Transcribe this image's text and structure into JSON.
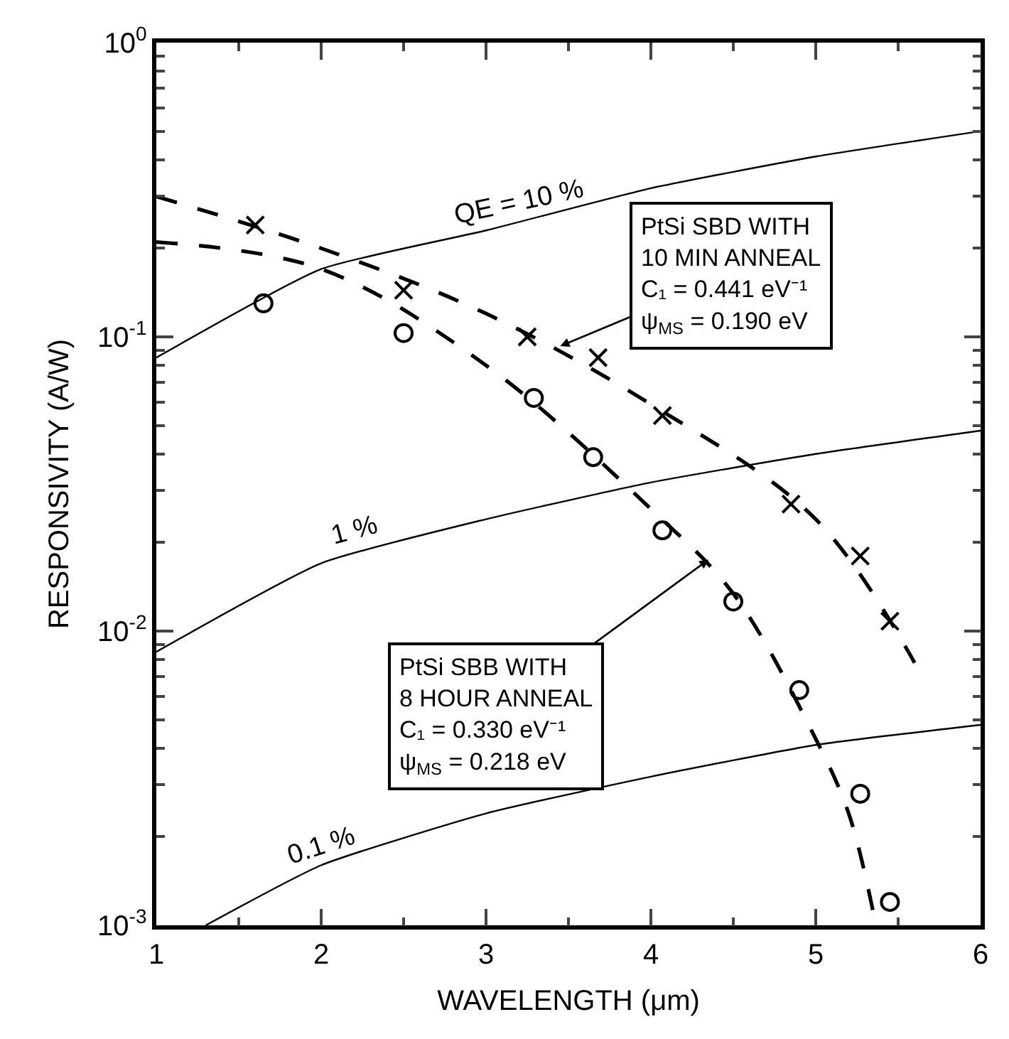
{
  "chart_data": {
    "type": "line",
    "xlabel": "WAVELENGTH (μm)",
    "ylabel": "RESPONSIVITY (A/W)",
    "xlim": [
      1,
      6
    ],
    "xticks": [
      1,
      2,
      3,
      4,
      5,
      6
    ],
    "ylim": [
      0.001,
      1
    ],
    "yticks": [
      {
        "value": 0.001,
        "label": "10$^{-3}$"
      },
      {
        "value": 0.01,
        "label": "10$^{-2}$"
      },
      {
        "value": 0.1,
        "label": "10$^{-1}$"
      },
      {
        "value": 1,
        "label": "10$^{0}$"
      }
    ],
    "log": "y",
    "series": [
      {
        "color": "#000000",
        "line_style": "solid",
        "marker": "none",
        "x": [
          1,
          2,
          3,
          4,
          5,
          6
        ],
        "values": [
          0.085,
          0.17,
          0.23,
          0.32,
          0.41,
          0.5
        ]
      },
      {
        "color": "#000000",
        "line_style": "solid",
        "marker": "none",
        "x": [
          1,
          2,
          3,
          4,
          5,
          6
        ],
        "values": [
          0.0085,
          0.017,
          0.024,
          0.032,
          0.04,
          0.048
        ]
      },
      {
        "color": "#000000",
        "line_style": "solid",
        "marker": "none",
        "x": [
          1.3,
          2,
          3,
          4,
          5,
          6
        ],
        "values": [
          0.001,
          0.0016,
          0.0024,
          0.0032,
          0.0041,
          0.0048
        ]
      },
      {
        "color": "#000000",
        "line_style": "dashed",
        "marker": "none",
        "x": [
          1,
          2,
          3,
          4,
          4.5,
          5,
          5.2,
          5.35
        ],
        "values": [
          0.21,
          0.17,
          0.08,
          0.026,
          0.0134,
          0.0043,
          0.0024,
          0.0011
        ]
      },
      {
        "color": "#000000",
        "line_style": "dashed",
        "marker": "none",
        "x": [
          1,
          2,
          3,
          4,
          5,
          5.6
        ],
        "values": [
          0.3,
          0.2,
          0.12,
          0.059,
          0.024,
          0.0078
        ]
      },
      {
        "type": "scatter",
        "color": "#000000",
        "marker": "circle",
        "x": [
          1.65,
          2.5,
          3.29,
          3.65,
          4.07,
          4.5,
          4.9,
          5.27,
          5.45
        ],
        "values": [
          0.13,
          0.103,
          0.062,
          0.039,
          0.022,
          0.0126,
          0.0063,
          0.0028,
          0.0012
        ]
      },
      {
        "type": "scatter",
        "color": "#000000",
        "marker": "cross",
        "x": [
          1.6,
          2.5,
          3.25,
          3.68,
          4.07,
          4.85,
          5.27,
          5.45
        ],
        "values": [
          0.24,
          0.144,
          0.1,
          0.085,
          0.054,
          0.027,
          0.018,
          0.0108
        ]
      }
    ],
    "annotations": [
      {
        "text": "QE = 10 %",
        "x": 3.2,
        "y": 0.248
      },
      {
        "text": "1 %",
        "x": 2.2,
        "y": 0.019
      },
      {
        "text": "0.1 %",
        "x": 2,
        "y": 0.0016
      },
      {
        "text": "PtSi SBD WITH\n10 MIN ANNEAL\nC₁ = 0.441 eV⁻¹\nψ$_{MS}$ = 0.190 eV",
        "x": 3.45,
        "y": 0.093
      },
      {
        "text": "PtSi SBB WITH\n8 HOUR ANNEAL\nC₁ = 0.330 eV⁻¹\nψ$_{MS}$ = 0.218 eV",
        "x": 4.35,
        "y": 0.0175
      }
    ]
  }
}
